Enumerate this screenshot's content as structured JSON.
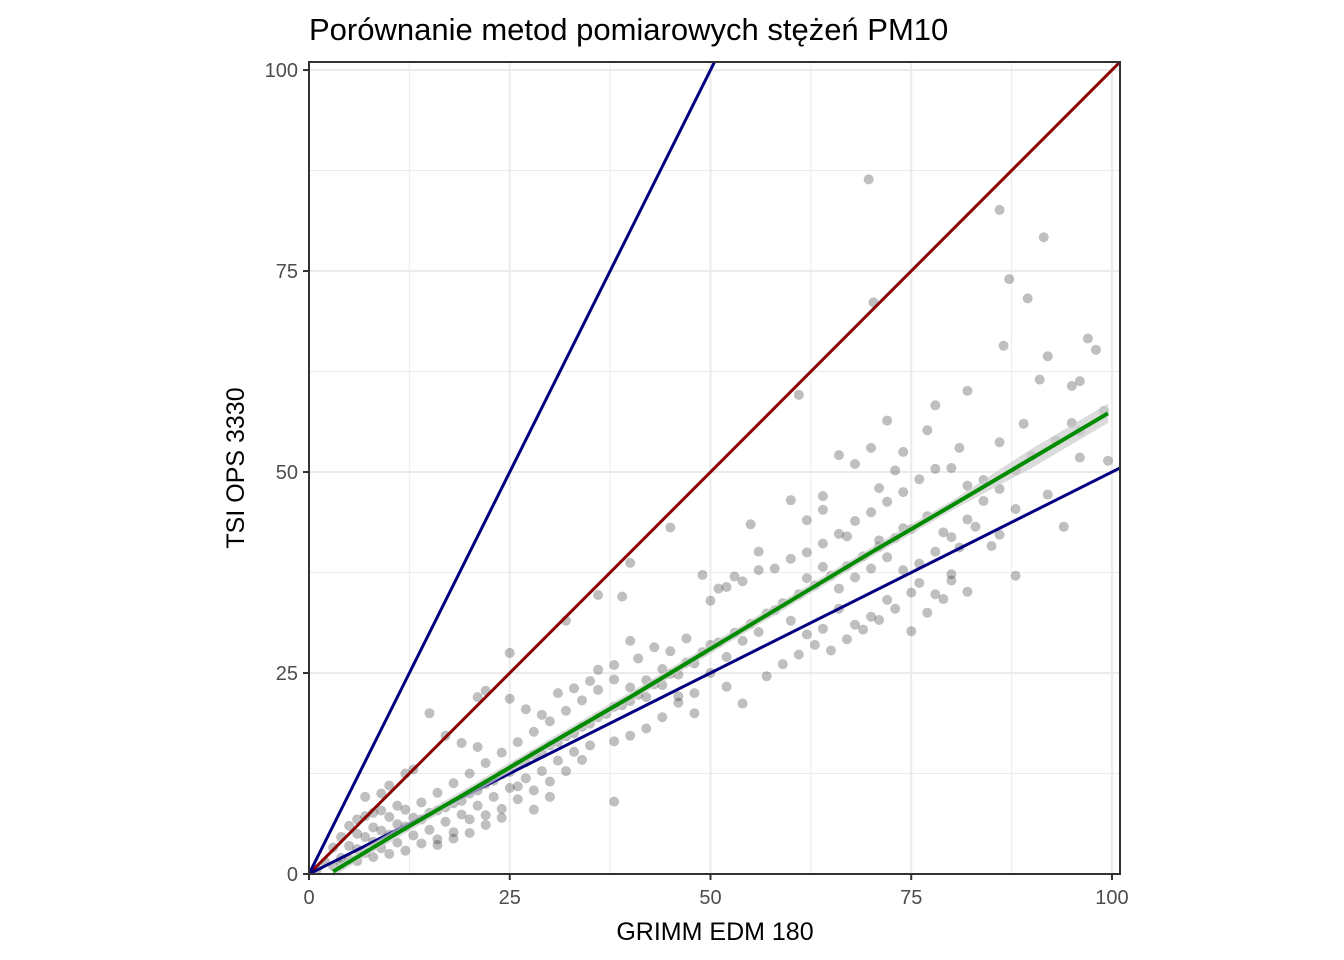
{
  "chart_data": {
    "type": "scatter",
    "title": "Porównanie metod pomiarowych stężeń PM10",
    "xlabel": "GRIMM EDM 180",
    "ylabel": "TSI OPS 3330",
    "xlim": [
      0,
      101
    ],
    "ylim": [
      0,
      101
    ],
    "x_ticks": [
      "0",
      "25",
      "50",
      "75",
      "100"
    ],
    "y_ticks": [
      "0",
      "25",
      "50",
      "75",
      "100"
    ],
    "grid": true,
    "legend": "none",
    "colors": {
      "points": "#000000",
      "ref_line_1_to_1": "#8b0000",
      "ref_lines_2_and_half": "#000080",
      "fit": "#008b00",
      "fit_band": "#cccccc",
      "grid": "#ebebeb",
      "panel_border": "#333333"
    },
    "reference_lines": [
      {
        "slope": 1,
        "intercept": 0,
        "color": "#8b0000"
      },
      {
        "slope": 2,
        "intercept": 0,
        "color": "#000080"
      },
      {
        "slope": 0.5,
        "intercept": 0,
        "color": "#000080"
      }
    ],
    "fit_line": {
      "method": "smooth",
      "color": "#008b00",
      "points": [
        [
          3,
          0.3
        ],
        [
          10,
          4.5
        ],
        [
          20,
          10.3
        ],
        [
          30,
          16.2
        ],
        [
          40,
          22.0
        ],
        [
          50,
          28.0
        ],
        [
          60,
          34.0
        ],
        [
          70,
          40.0
        ],
        [
          80,
          45.8
        ],
        [
          90,
          51.7
        ],
        [
          99.5,
          57.3
        ]
      ]
    },
    "points": [
      [
        86,
        82.6
      ],
      [
        69.7,
        86.4
      ],
      [
        91.5,
        79.2
      ],
      [
        70.3,
        71.1
      ],
      [
        87.2,
        74.0
      ],
      [
        89.5,
        71.6
      ],
      [
        86.5,
        65.7
      ],
      [
        97,
        66.6
      ],
      [
        92,
        64.4
      ],
      [
        98,
        65.2
      ],
      [
        91,
        61.5
      ],
      [
        95,
        60.7
      ],
      [
        61,
        59.6
      ],
      [
        82,
        60.1
      ],
      [
        96,
        61.3
      ],
      [
        99,
        57.6
      ],
      [
        95,
        56.1
      ],
      [
        78,
        58.3
      ],
      [
        72,
        56.4
      ],
      [
        89,
        56.0
      ],
      [
        99.5,
        51.4
      ],
      [
        96,
        51.8
      ],
      [
        94,
        43.2
      ],
      [
        88,
        45.4
      ],
      [
        92,
        47.2
      ],
      [
        86,
        53.7
      ],
      [
        81,
        53.0
      ],
      [
        77,
        55.2
      ],
      [
        70,
        53.0
      ],
      [
        74,
        52.5
      ],
      [
        84,
        49.0
      ],
      [
        78,
        50.4
      ],
      [
        80,
        50.5
      ],
      [
        82,
        48.3
      ],
      [
        73,
        50.2
      ],
      [
        76,
        49.1
      ],
      [
        71,
        48.0
      ],
      [
        66,
        52.1
      ],
      [
        68,
        51.0
      ],
      [
        64,
        47.0
      ],
      [
        60,
        46.5
      ],
      [
        62,
        44.0
      ],
      [
        64,
        45.3
      ],
      [
        67,
        42.0
      ],
      [
        71,
        41.5
      ],
      [
        74,
        43.0
      ],
      [
        77,
        44.5
      ],
      [
        79,
        42.5
      ],
      [
        81,
        40.6
      ],
      [
        83,
        43.2
      ],
      [
        86,
        42.2
      ],
      [
        85,
        40.8
      ],
      [
        88,
        37.1
      ],
      [
        80,
        37.3
      ],
      [
        82,
        35.1
      ],
      [
        79,
        34.2
      ],
      [
        77,
        32.5
      ],
      [
        75,
        35.0
      ],
      [
        72,
        34.1
      ],
      [
        70,
        32.0
      ],
      [
        68,
        31.0
      ],
      [
        66,
        33.0
      ],
      [
        64,
        30.5
      ],
      [
        62,
        29.8
      ],
      [
        60,
        31.5
      ],
      [
        58,
        32.8
      ],
      [
        56,
        30.1
      ],
      [
        54,
        29.0
      ],
      [
        52,
        27.0
      ],
      [
        50,
        28.5
      ],
      [
        48,
        26.2
      ],
      [
        46,
        24.8
      ],
      [
        44,
        23.5
      ],
      [
        42,
        22.0
      ],
      [
        40,
        21.5
      ],
      [
        38,
        20.8
      ],
      [
        36,
        19.5
      ],
      [
        34,
        18.3
      ],
      [
        32,
        17.1
      ],
      [
        30,
        16.0
      ],
      [
        28,
        14.8
      ],
      [
        26,
        13.6
      ],
      [
        24,
        12.4
      ],
      [
        22,
        11.2
      ],
      [
        20,
        10.0
      ],
      [
        18,
        8.8
      ],
      [
        16,
        7.9
      ],
      [
        14,
        6.8
      ],
      [
        12,
        5.9
      ],
      [
        10,
        4.9
      ],
      [
        8,
        4.0
      ],
      [
        6,
        3.1
      ],
      [
        4,
        2.0
      ],
      [
        5,
        3.5
      ],
      [
        7,
        4.6
      ],
      [
        9,
        5.4
      ],
      [
        11,
        6.2
      ],
      [
        13,
        7.0
      ],
      [
        15,
        7.6
      ],
      [
        17,
        8.3
      ],
      [
        19,
        9.1
      ],
      [
        21,
        10.4
      ],
      [
        23,
        11.6
      ],
      [
        25,
        12.7
      ],
      [
        27,
        13.9
      ],
      [
        29,
        15.0
      ],
      [
        31,
        16.4
      ],
      [
        33,
        17.5
      ],
      [
        35,
        18.7
      ],
      [
        37,
        19.9
      ],
      [
        39,
        21.0
      ],
      [
        41,
        22.3
      ],
      [
        43,
        23.6
      ],
      [
        45,
        24.9
      ],
      [
        47,
        26.3
      ],
      [
        49,
        27.6
      ],
      [
        51,
        28.8
      ],
      [
        53,
        30.0
      ],
      [
        55,
        31.1
      ],
      [
        57,
        32.4
      ],
      [
        59,
        33.7
      ],
      [
        61,
        34.8
      ],
      [
        63,
        35.9
      ],
      [
        65,
        37.1
      ],
      [
        67,
        38.3
      ],
      [
        69,
        39.5
      ],
      [
        71,
        40.7
      ],
      [
        73,
        41.8
      ],
      [
        75,
        42.9
      ],
      [
        55,
        43.5
      ],
      [
        56,
        40.1
      ],
      [
        58,
        38.0
      ],
      [
        60,
        39.2
      ],
      [
        53,
        37.0
      ],
      [
        51,
        35.5
      ],
      [
        50,
        34.0
      ],
      [
        49,
        37.2
      ],
      [
        45,
        43.1
      ],
      [
        40,
        38.7
      ],
      [
        36,
        34.7
      ],
      [
        39,
        34.5
      ],
      [
        32,
        31.5
      ],
      [
        40,
        29.0
      ],
      [
        41,
        26.8
      ],
      [
        43,
        28.2
      ],
      [
        45,
        27.7
      ],
      [
        47,
        29.3
      ],
      [
        46,
        22.1
      ],
      [
        48,
        20.0
      ],
      [
        44,
        19.5
      ],
      [
        42,
        18.1
      ],
      [
        40,
        17.2
      ],
      [
        38,
        16.5
      ],
      [
        35,
        16.0
      ],
      [
        33,
        15.2
      ],
      [
        31,
        14.1
      ],
      [
        29,
        12.8
      ],
      [
        27,
        11.9
      ],
      [
        25,
        10.7
      ],
      [
        23,
        9.6
      ],
      [
        21,
        8.5
      ],
      [
        19,
        7.4
      ],
      [
        17,
        6.5
      ],
      [
        15,
        5.5
      ],
      [
        13,
        4.8
      ],
      [
        11,
        3.9
      ],
      [
        9,
        3.2
      ],
      [
        7,
        2.6
      ],
      [
        5,
        1.8
      ],
      [
        3,
        1.0
      ],
      [
        6,
        5.0
      ],
      [
        8,
        5.8
      ],
      [
        10,
        7.1
      ],
      [
        12,
        8.0
      ],
      [
        14,
        8.9
      ],
      [
        16,
        10.1
      ],
      [
        18,
        11.3
      ],
      [
        20,
        12.5
      ],
      [
        22,
        13.8
      ],
      [
        24,
        15.1
      ],
      [
        26,
        16.4
      ],
      [
        28,
        17.7
      ],
      [
        30,
        19.0
      ],
      [
        32,
        20.3
      ],
      [
        34,
        21.6
      ],
      [
        36,
        22.9
      ],
      [
        38,
        24.2
      ],
      [
        25,
        27.5
      ],
      [
        22,
        22.8
      ],
      [
        21,
        22.0
      ],
      [
        15,
        20.0
      ],
      [
        17,
        17.2
      ],
      [
        19,
        16.3
      ],
      [
        21,
        15.8
      ],
      [
        25,
        21.8
      ],
      [
        27,
        20.5
      ],
      [
        29,
        19.8
      ],
      [
        31,
        22.5
      ],
      [
        33,
        23.1
      ],
      [
        35,
        24.0
      ],
      [
        38,
        9.0
      ],
      [
        30,
        9.6
      ],
      [
        28,
        8.0
      ],
      [
        26,
        10.9
      ],
      [
        24,
        7.0
      ],
      [
        22,
        6.1
      ],
      [
        20,
        6.8
      ],
      [
        18,
        5.2
      ],
      [
        16,
        4.3
      ],
      [
        14,
        3.8
      ],
      [
        12,
        2.9
      ],
      [
        10,
        2.5
      ],
      [
        8,
        2.1
      ],
      [
        6,
        1.6
      ],
      [
        4,
        1.2
      ],
      [
        10,
        11.0
      ],
      [
        12,
        12.5
      ],
      [
        9,
        10.0
      ],
      [
        7,
        9.6
      ],
      [
        13,
        13.0
      ],
      [
        11,
        8.5
      ],
      [
        9,
        7.9
      ],
      [
        7,
        7.2
      ],
      [
        5,
        6.0
      ],
      [
        4,
        4.6
      ],
      [
        3,
        3.3
      ],
      [
        2,
        1.5
      ],
      [
        1,
        0.6
      ],
      [
        6,
        6.8
      ],
      [
        8,
        7.6
      ],
      [
        52,
        35.7
      ],
      [
        54,
        36.4
      ],
      [
        56,
        37.8
      ],
      [
        62,
        40.0
      ],
      [
        64,
        41.1
      ],
      [
        66,
        42.3
      ],
      [
        68,
        43.9
      ],
      [
        70,
        45.0
      ],
      [
        72,
        46.3
      ],
      [
        74,
        47.5
      ],
      [
        57,
        24.6
      ],
      [
        59,
        26.1
      ],
      [
        61,
        27.3
      ],
      [
        63,
        28.5
      ],
      [
        65,
        27.8
      ],
      [
        67,
        29.2
      ],
      [
        69,
        30.4
      ],
      [
        71,
        31.6
      ],
      [
        73,
        33.0
      ],
      [
        75,
        30.2
      ],
      [
        76,
        38.6
      ],
      [
        78,
        40.1
      ],
      [
        80,
        41.9
      ],
      [
        82,
        44.1
      ],
      [
        84,
        46.4
      ],
      [
        86,
        47.9
      ],
      [
        88,
        50.2
      ],
      [
        90,
        52.0
      ],
      [
        93,
        53.9
      ],
      [
        96,
        55.1
      ],
      [
        54,
        21.2
      ],
      [
        52,
        23.3
      ],
      [
        50,
        25.0
      ],
      [
        48,
        22.5
      ],
      [
        46,
        21.3
      ],
      [
        44,
        25.5
      ],
      [
        42,
        24.1
      ],
      [
        40,
        23.2
      ],
      [
        38,
        26.0
      ],
      [
        36,
        25.4
      ],
      [
        62,
        36.8
      ],
      [
        64,
        38.2
      ],
      [
        66,
        35.5
      ],
      [
        68,
        36.9
      ],
      [
        70,
        38.0
      ],
      [
        72,
        39.4
      ],
      [
        74,
        37.8
      ],
      [
        76,
        36.2
      ],
      [
        78,
        34.8
      ],
      [
        80,
        36.5
      ],
      [
        34,
        14.2
      ],
      [
        32,
        12.8
      ],
      [
        30,
        11.5
      ],
      [
        28,
        10.4
      ],
      [
        26,
        9.3
      ],
      [
        24,
        8.1
      ],
      [
        22,
        7.3
      ],
      [
        20,
        5.1
      ],
      [
        18,
        4.4
      ],
      [
        16,
        3.6
      ]
    ]
  }
}
